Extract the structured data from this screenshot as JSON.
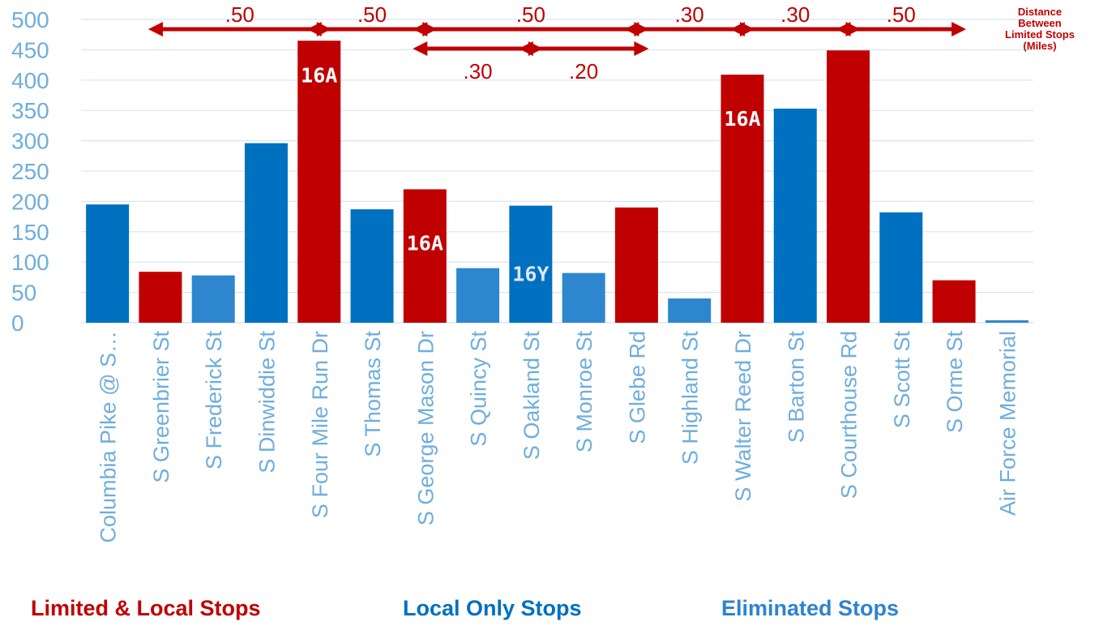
{
  "chart_data": {
    "type": "bar",
    "ylim": [
      0,
      500
    ],
    "yticks": [
      "0",
      "50",
      "100",
      "150",
      "200",
      "250",
      "300",
      "350",
      "400",
      "450",
      "500"
    ],
    "grid": true,
    "categories": [
      "Columbia Pike @ S…",
      "S Greenbrier St",
      "S Frederick St",
      "S Dinwiddie St",
      "S Four Mile Run Dr",
      "S Thomas St",
      "S George Mason Dr",
      "S Quincy St",
      "S Oakland St",
      "S Monroe St",
      "S Glebe Rd",
      "S Highland St",
      "S Walter Reed Dr",
      "S Barton St",
      "S Courthouse Rd",
      "S Scott St",
      "S Orme St",
      "Air Force Memorial"
    ],
    "values": [
      195,
      84,
      78,
      296,
      465,
      187,
      220,
      90,
      193,
      82,
      190,
      40,
      409,
      353,
      449,
      182,
      70,
      4
    ],
    "stop_type": [
      "local",
      "limited",
      "eliminated",
      "local",
      "limited",
      "local",
      "limited",
      "eliminated",
      "local",
      "eliminated",
      "limited",
      "eliminated",
      "limited",
      "local",
      "limited",
      "local",
      "limited",
      "eliminated"
    ],
    "bar_labels": [
      {
        "index": 4,
        "text": "16A",
        "value": 410
      },
      {
        "index": 6,
        "text": "16A",
        "value": 133
      },
      {
        "index": 8,
        "text": "16Y",
        "value": 82
      },
      {
        "index": 12,
        "text": "16A",
        "value": 338
      }
    ],
    "distance_arrows": [
      {
        "from": 1,
        "to": 4,
        "label": ".50",
        "row": "upper"
      },
      {
        "from": 4,
        "to": 6,
        "label": ".50",
        "row": "upper"
      },
      {
        "from": 6,
        "to": 10,
        "label": ".50",
        "row": "upper"
      },
      {
        "from": 10,
        "to": 12,
        "label": ".30",
        "row": "upper"
      },
      {
        "from": 12,
        "to": 14,
        "label": ".30",
        "row": "upper"
      },
      {
        "from": 14,
        "to": 16,
        "label": ".50",
        "row": "upper"
      },
      {
        "from": 6,
        "to": 8,
        "label": ".30",
        "row": "lower"
      },
      {
        "from": 8,
        "to": 10,
        "label": ".20",
        "row": "lower"
      }
    ],
    "distance_note": [
      "Distance",
      "Between",
      "Limited Stops",
      "(Miles)"
    ],
    "legend": [
      {
        "label": "Limited & Local Stops",
        "type": "limited"
      },
      {
        "label": "Local Only Stops",
        "type": "local"
      },
      {
        "label": "Eliminated Stops",
        "type": "eliminated"
      }
    ],
    "colors": {
      "limited": "#C00000",
      "local": "#0070C0",
      "eliminated": "#2E86CE",
      "axis_text": "#6FAEDC",
      "grid": "#D6E6F5",
      "bar_label_text": "#FFFFFF",
      "bar_label_text_alt": "#DCE6F0",
      "legend_eliminated": "#2F83CF"
    }
  }
}
